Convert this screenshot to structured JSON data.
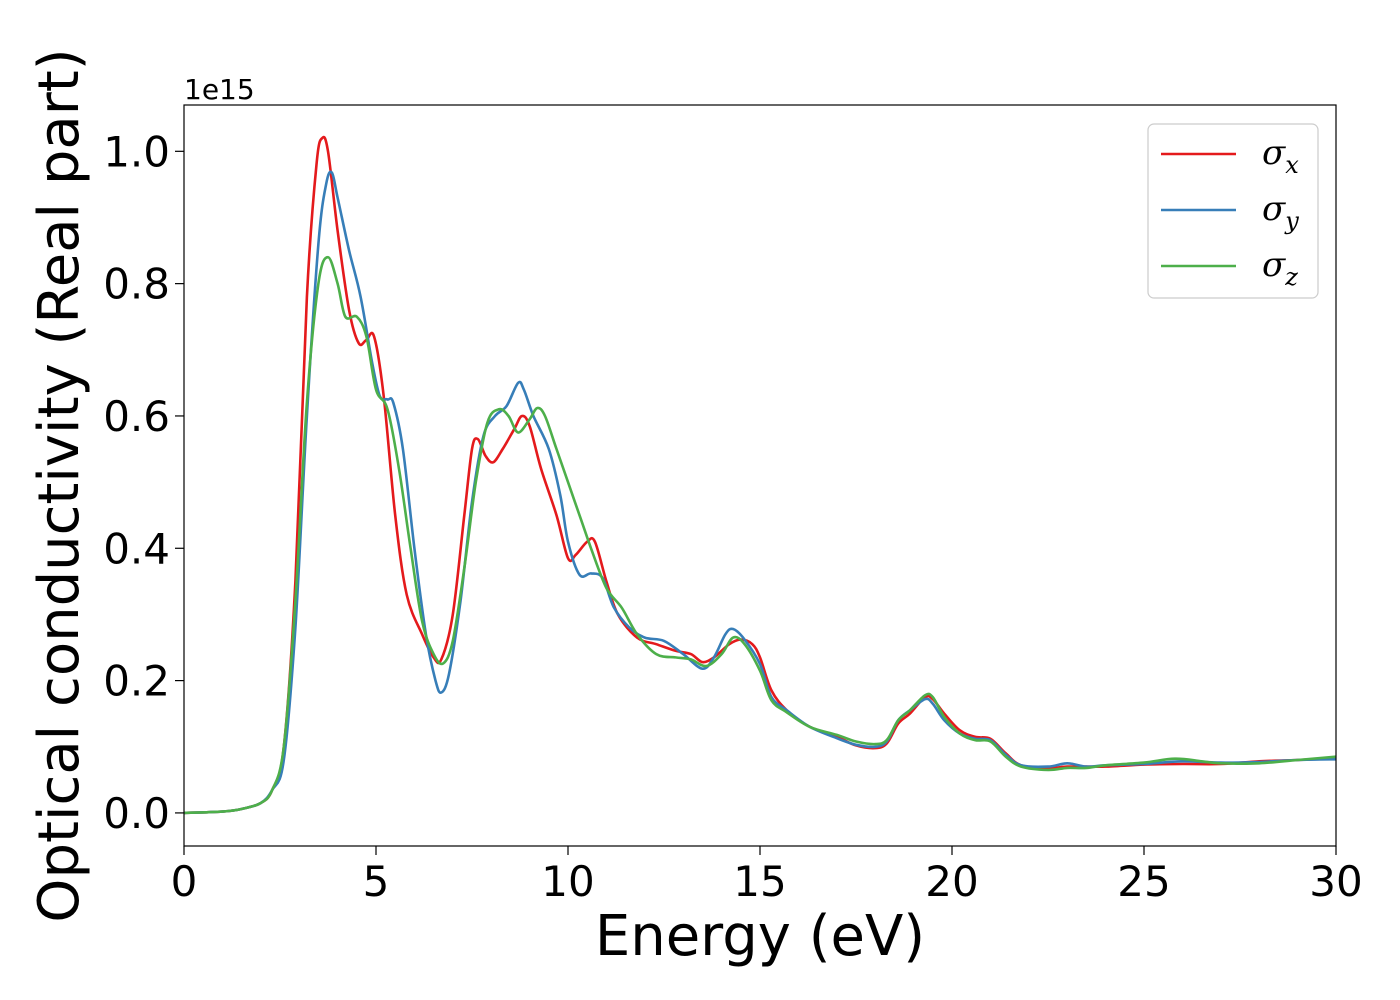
{
  "chart_data": {
    "type": "line",
    "title": "",
    "xlabel": "Energy (eV)",
    "ylabel": "Optical conductivity (Real part)",
    "y_offset_label": "1e15",
    "y_scale": 1000000000000000.0,
    "xlim": [
      0,
      30
    ],
    "ylim": [
      -0.05,
      1.07
    ],
    "xticks": [
      0,
      5,
      10,
      15,
      20,
      25,
      30
    ],
    "xtick_labels": [
      "0",
      "5",
      "10",
      "15",
      "20",
      "25",
      "30"
    ],
    "yticks": [
      0.0,
      0.2,
      0.4,
      0.6,
      0.8,
      1.0
    ],
    "ytick_labels": [
      "0.0",
      "0.2",
      "0.4",
      "0.6",
      "0.8",
      "1.0"
    ],
    "grid": false,
    "legend_position": "top-right",
    "series": [
      {
        "name": "σx",
        "symbol": "σ",
        "subscript": "x",
        "color": "#e41a1c",
        "points": [
          [
            0,
            0.0
          ],
          [
            1,
            0.002
          ],
          [
            1.5,
            0.006
          ],
          [
            2,
            0.015
          ],
          [
            2.3,
            0.035
          ],
          [
            2.6,
            0.1
          ],
          [
            2.9,
            0.35
          ],
          [
            3.2,
            0.78
          ],
          [
            3.45,
            0.98
          ],
          [
            3.6,
            1.02
          ],
          [
            3.75,
            1.0
          ],
          [
            4.0,
            0.88
          ],
          [
            4.3,
            0.76
          ],
          [
            4.55,
            0.71
          ],
          [
            4.75,
            0.715
          ],
          [
            4.95,
            0.72
          ],
          [
            5.2,
            0.63
          ],
          [
            5.5,
            0.45
          ],
          [
            5.8,
            0.33
          ],
          [
            6.2,
            0.27
          ],
          [
            6.5,
            0.235
          ],
          [
            6.7,
            0.232
          ],
          [
            7.0,
            0.3
          ],
          [
            7.3,
            0.45
          ],
          [
            7.5,
            0.55
          ],
          [
            7.65,
            0.565
          ],
          [
            7.85,
            0.54
          ],
          [
            8.05,
            0.53
          ],
          [
            8.3,
            0.55
          ],
          [
            8.6,
            0.58
          ],
          [
            8.8,
            0.6
          ],
          [
            9.0,
            0.585
          ],
          [
            9.3,
            0.52
          ],
          [
            9.7,
            0.45
          ],
          [
            10.0,
            0.385
          ],
          [
            10.2,
            0.39
          ],
          [
            10.5,
            0.41
          ],
          [
            10.7,
            0.41
          ],
          [
            11.0,
            0.35
          ],
          [
            11.3,
            0.3
          ],
          [
            11.8,
            0.265
          ],
          [
            12.3,
            0.255
          ],
          [
            12.8,
            0.245
          ],
          [
            13.2,
            0.24
          ],
          [
            13.5,
            0.228
          ],
          [
            13.8,
            0.235
          ],
          [
            14.2,
            0.255
          ],
          [
            14.5,
            0.262
          ],
          [
            14.8,
            0.255
          ],
          [
            15.0,
            0.235
          ],
          [
            15.3,
            0.185
          ],
          [
            15.7,
            0.155
          ],
          [
            16.3,
            0.13
          ],
          [
            17.0,
            0.115
          ],
          [
            17.5,
            0.102
          ],
          [
            18.0,
            0.098
          ],
          [
            18.3,
            0.105
          ],
          [
            18.6,
            0.135
          ],
          [
            18.9,
            0.15
          ],
          [
            19.3,
            0.175
          ],
          [
            19.5,
            0.172
          ],
          [
            19.8,
            0.15
          ],
          [
            20.2,
            0.125
          ],
          [
            20.6,
            0.115
          ],
          [
            21.0,
            0.112
          ],
          [
            21.4,
            0.09
          ],
          [
            21.8,
            0.072
          ],
          [
            22.5,
            0.068
          ],
          [
            23.0,
            0.07
          ],
          [
            23.5,
            0.07
          ],
          [
            24.0,
            0.07
          ],
          [
            25.0,
            0.073
          ],
          [
            26.0,
            0.074
          ],
          [
            27.0,
            0.074
          ],
          [
            28.0,
            0.078
          ],
          [
            29.0,
            0.08
          ],
          [
            30.0,
            0.083
          ]
        ]
      },
      {
        "name": "σy",
        "symbol": "σ",
        "subscript": "y",
        "color": "#377eb8",
        "points": [
          [
            0,
            0.0
          ],
          [
            1,
            0.002
          ],
          [
            1.5,
            0.006
          ],
          [
            2,
            0.015
          ],
          [
            2.3,
            0.035
          ],
          [
            2.6,
            0.08
          ],
          [
            2.9,
            0.28
          ],
          [
            3.2,
            0.6
          ],
          [
            3.5,
            0.86
          ],
          [
            3.7,
            0.95
          ],
          [
            3.85,
            0.968
          ],
          [
            4.0,
            0.93
          ],
          [
            4.3,
            0.85
          ],
          [
            4.6,
            0.78
          ],
          [
            4.9,
            0.68
          ],
          [
            5.1,
            0.63
          ],
          [
            5.3,
            0.625
          ],
          [
            5.45,
            0.62
          ],
          [
            5.7,
            0.55
          ],
          [
            6.0,
            0.4
          ],
          [
            6.3,
            0.27
          ],
          [
            6.55,
            0.2
          ],
          [
            6.7,
            0.182
          ],
          [
            6.9,
            0.21
          ],
          [
            7.2,
            0.32
          ],
          [
            7.5,
            0.47
          ],
          [
            7.8,
            0.57
          ],
          [
            8.1,
            0.6
          ],
          [
            8.4,
            0.615
          ],
          [
            8.7,
            0.65
          ],
          [
            8.85,
            0.64
          ],
          [
            9.1,
            0.6
          ],
          [
            9.5,
            0.55
          ],
          [
            9.8,
            0.48
          ],
          [
            10.0,
            0.41
          ],
          [
            10.3,
            0.36
          ],
          [
            10.6,
            0.362
          ],
          [
            10.9,
            0.355
          ],
          [
            11.2,
            0.31
          ],
          [
            11.6,
            0.28
          ],
          [
            12.0,
            0.265
          ],
          [
            12.5,
            0.26
          ],
          [
            13.0,
            0.24
          ],
          [
            13.5,
            0.218
          ],
          [
            13.8,
            0.235
          ],
          [
            14.1,
            0.27
          ],
          [
            14.3,
            0.278
          ],
          [
            14.6,
            0.262
          ],
          [
            15.0,
            0.225
          ],
          [
            15.3,
            0.175
          ],
          [
            15.7,
            0.155
          ],
          [
            16.3,
            0.13
          ],
          [
            17.0,
            0.113
          ],
          [
            17.5,
            0.103
          ],
          [
            18.0,
            0.1
          ],
          [
            18.3,
            0.108
          ],
          [
            18.6,
            0.14
          ],
          [
            18.9,
            0.155
          ],
          [
            19.3,
            0.172
          ],
          [
            19.5,
            0.165
          ],
          [
            19.8,
            0.14
          ],
          [
            20.2,
            0.12
          ],
          [
            20.6,
            0.112
          ],
          [
            21.0,
            0.11
          ],
          [
            21.4,
            0.088
          ],
          [
            21.8,
            0.072
          ],
          [
            22.5,
            0.07
          ],
          [
            23.0,
            0.075
          ],
          [
            23.5,
            0.07
          ],
          [
            24.0,
            0.072
          ],
          [
            25.0,
            0.074
          ],
          [
            26.0,
            0.078
          ],
          [
            27.0,
            0.076
          ],
          [
            28.0,
            0.077
          ],
          [
            29.0,
            0.08
          ],
          [
            30.0,
            0.081
          ]
        ]
      },
      {
        "name": "σz",
        "symbol": "σ",
        "subscript": "z",
        "color": "#4daf4a",
        "points": [
          [
            0,
            0.0
          ],
          [
            1,
            0.002
          ],
          [
            1.5,
            0.006
          ],
          [
            2,
            0.015
          ],
          [
            2.3,
            0.035
          ],
          [
            2.6,
            0.1
          ],
          [
            2.9,
            0.32
          ],
          [
            3.2,
            0.62
          ],
          [
            3.5,
            0.8
          ],
          [
            3.75,
            0.84
          ],
          [
            4.0,
            0.8
          ],
          [
            4.2,
            0.75
          ],
          [
            4.5,
            0.75
          ],
          [
            4.75,
            0.72
          ],
          [
            5.0,
            0.64
          ],
          [
            5.3,
            0.61
          ],
          [
            5.6,
            0.52
          ],
          [
            5.9,
            0.4
          ],
          [
            6.2,
            0.29
          ],
          [
            6.5,
            0.24
          ],
          [
            6.75,
            0.226
          ],
          [
            7.0,
            0.26
          ],
          [
            7.3,
            0.37
          ],
          [
            7.6,
            0.5
          ],
          [
            7.9,
            0.59
          ],
          [
            8.2,
            0.61
          ],
          [
            8.45,
            0.6
          ],
          [
            8.7,
            0.575
          ],
          [
            9.0,
            0.595
          ],
          [
            9.2,
            0.612
          ],
          [
            9.4,
            0.6
          ],
          [
            9.7,
            0.55
          ],
          [
            10.0,
            0.5
          ],
          [
            10.3,
            0.45
          ],
          [
            10.6,
            0.4
          ],
          [
            11.0,
            0.34
          ],
          [
            11.4,
            0.31
          ],
          [
            11.8,
            0.27
          ],
          [
            12.3,
            0.24
          ],
          [
            12.8,
            0.235
          ],
          [
            13.2,
            0.232
          ],
          [
            13.6,
            0.222
          ],
          [
            14.0,
            0.24
          ],
          [
            14.3,
            0.265
          ],
          [
            14.6,
            0.255
          ],
          [
            15.0,
            0.215
          ],
          [
            15.3,
            0.17
          ],
          [
            15.7,
            0.152
          ],
          [
            16.3,
            0.13
          ],
          [
            17.0,
            0.118
          ],
          [
            17.5,
            0.108
          ],
          [
            18.0,
            0.104
          ],
          [
            18.3,
            0.11
          ],
          [
            18.6,
            0.14
          ],
          [
            18.9,
            0.155
          ],
          [
            19.3,
            0.178
          ],
          [
            19.5,
            0.175
          ],
          [
            19.8,
            0.145
          ],
          [
            20.2,
            0.12
          ],
          [
            20.6,
            0.11
          ],
          [
            21.0,
            0.108
          ],
          [
            21.4,
            0.085
          ],
          [
            21.8,
            0.07
          ],
          [
            22.5,
            0.065
          ],
          [
            23.0,
            0.068
          ],
          [
            23.5,
            0.068
          ],
          [
            24.0,
            0.072
          ],
          [
            25.0,
            0.076
          ],
          [
            25.8,
            0.082
          ],
          [
            26.5,
            0.078
          ],
          [
            27.0,
            0.075
          ],
          [
            28.0,
            0.075
          ],
          [
            29.0,
            0.08
          ],
          [
            30.0,
            0.085
          ]
        ]
      }
    ]
  }
}
